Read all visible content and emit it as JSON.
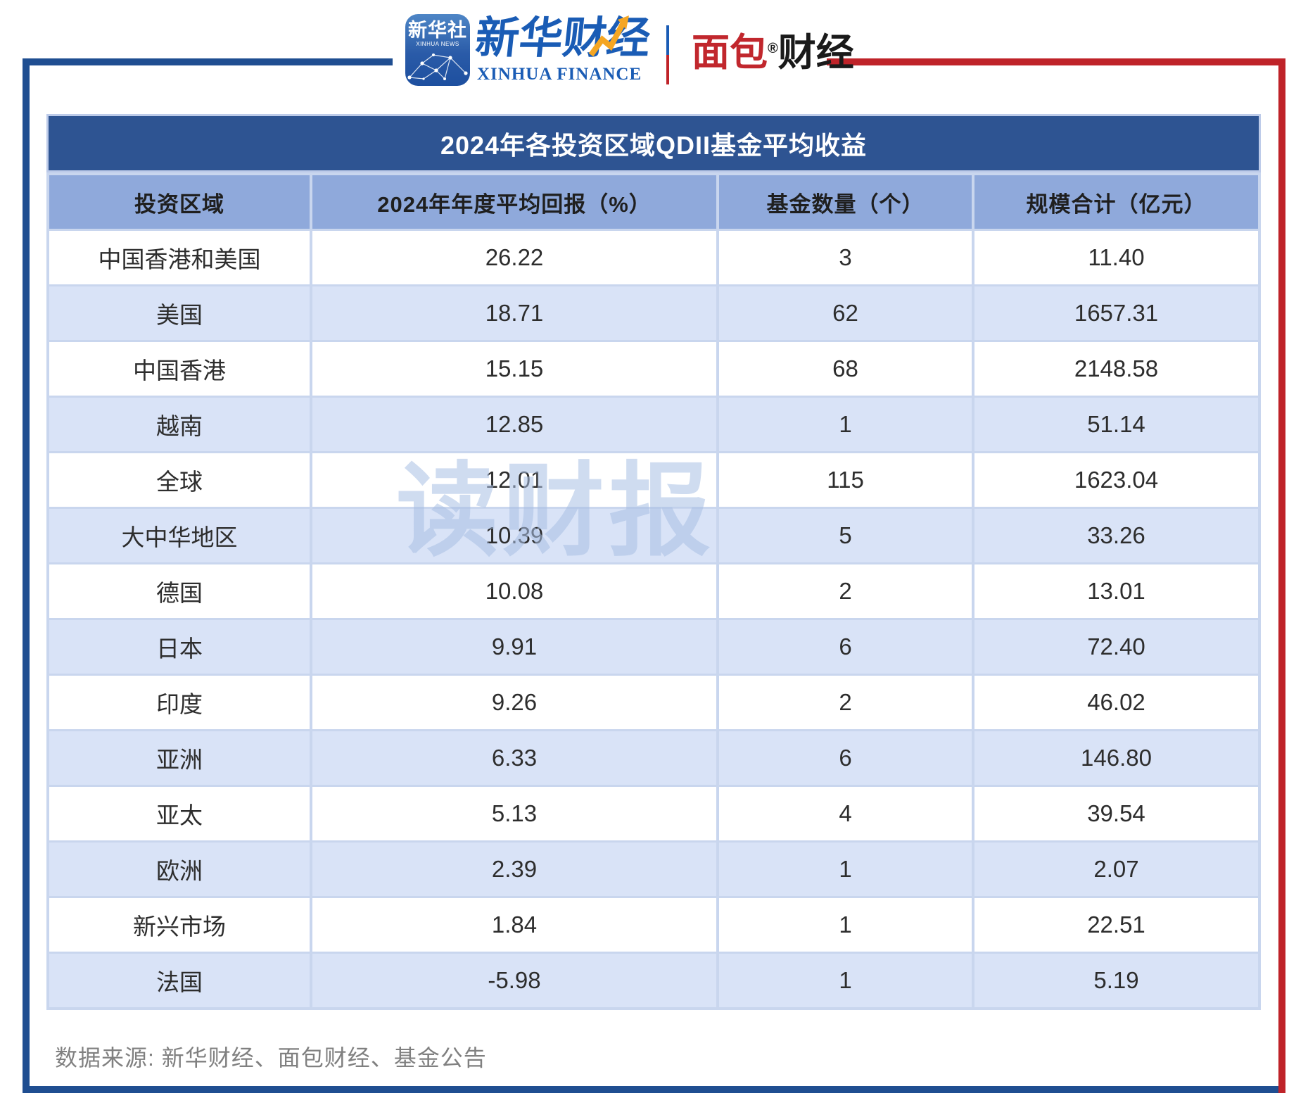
{
  "branding": {
    "xinhua_icon": {
      "cn": "新华社",
      "en": "XINHUA NEWS"
    },
    "xinhua_finance": {
      "cn": "新华财经",
      "en": "XINHUA FINANCE"
    },
    "mianbao": {
      "cn_red": "面包",
      "reg": "®",
      "cn_black": "财经"
    }
  },
  "chart_data": {
    "type": "table",
    "title": "2024年各投资区域QDII基金平均收益",
    "columns": [
      "投资区域",
      "2024年年度平均回报（%）",
      "基金数量（个）",
      "规模合计（亿元）"
    ],
    "rows": [
      [
        "中国香港和美国",
        "26.22",
        "3",
        "11.40"
      ],
      [
        "美国",
        "18.71",
        "62",
        "1657.31"
      ],
      [
        "中国香港",
        "15.15",
        "68",
        "2148.58"
      ],
      [
        "越南",
        "12.85",
        "1",
        "51.14"
      ],
      [
        "全球",
        "12.01",
        "115",
        "1623.04"
      ],
      [
        "大中华地区",
        "10.39",
        "5",
        "33.26"
      ],
      [
        "德国",
        "10.08",
        "2",
        "13.01"
      ],
      [
        "日本",
        "9.91",
        "6",
        "72.40"
      ],
      [
        "印度",
        "9.26",
        "2",
        "46.02"
      ],
      [
        "亚洲",
        "6.33",
        "6",
        "146.80"
      ],
      [
        "亚太",
        "5.13",
        "4",
        "39.54"
      ],
      [
        "欧洲",
        "2.39",
        "1",
        "2.07"
      ],
      [
        "新兴市场",
        "1.84",
        "1",
        "22.51"
      ],
      [
        "法国",
        "-5.98",
        "1",
        "5.19"
      ]
    ],
    "legend": null,
    "grid": "on",
    "notes": "rows sorted by 2024 annual average return, descending"
  },
  "watermark": "读财报",
  "footer": {
    "source": "数据来源: 新华财经、面包财经、基金公告"
  },
  "colors": {
    "frame_blue": "#1F4E91",
    "frame_red": "#BF2329",
    "title_bar_bg": "#2E5492",
    "title_text": "#FFFFFF",
    "header_row_bg": "#8FA9DB",
    "row_alt_bg": "#D9E3F7",
    "row_plain_bg": "#FFFFFF",
    "grid_line": "#C9D6EE",
    "cell_text": "#2D2D2D",
    "source_text": "#808080",
    "watermark_color": "#A9C0E4",
    "xinhua_blue": "#1A5CB5",
    "mianbao_red": "#C1272D",
    "arrow_yellow": "#F5A623"
  }
}
